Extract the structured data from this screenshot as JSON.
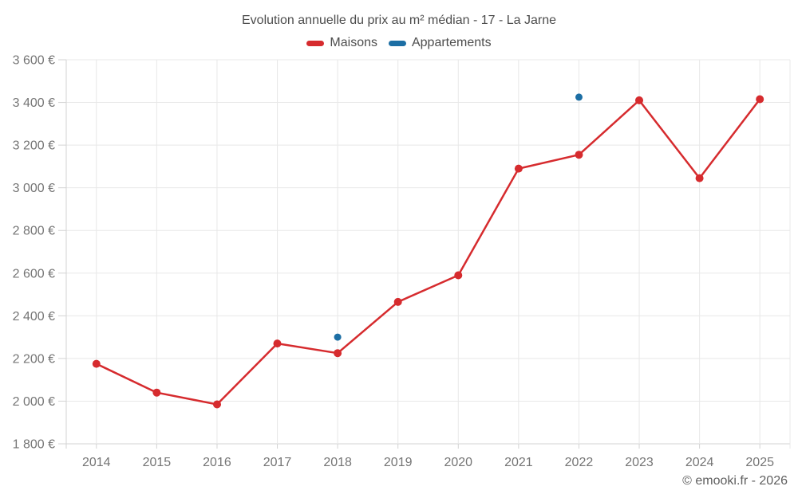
{
  "header": {
    "title": "Evolution annuelle du prix au m² médian - 17 - La Jarne"
  },
  "legend": {
    "items": [
      {
        "label": "Maisons",
        "color": "#d62b2e"
      },
      {
        "label": "Appartements",
        "color": "#1c6ea4"
      }
    ]
  },
  "footer": {
    "credit": "© emooki.fr - 2026"
  },
  "chart_data": {
    "type": "line",
    "title": "Evolution annuelle du prix au m² médian - 17 - La Jarne",
    "categories": [
      "2014",
      "2015",
      "2016",
      "2017",
      "2018",
      "2019",
      "2020",
      "2021",
      "2022",
      "2023",
      "2024",
      "2025"
    ],
    "series": [
      {
        "name": "Maisons",
        "type": "line",
        "color": "#d62b2e",
        "marker_radius": 5,
        "values": [
          2175,
          2040,
          1985,
          2270,
          2225,
          2465,
          2590,
          3090,
          3155,
          3410,
          3045,
          3415
        ]
      },
      {
        "name": "Appartements",
        "type": "scatter",
        "color": "#1c6ea4",
        "marker_radius": 4.5,
        "values": [
          null,
          null,
          null,
          null,
          2300,
          null,
          null,
          null,
          3425,
          null,
          null,
          null
        ]
      }
    ],
    "ylim": [
      1800,
      3600
    ],
    "yticks": [
      {
        "value": 1800,
        "label": "1 800 €"
      },
      {
        "value": 2000,
        "label": "2 000 €"
      },
      {
        "value": 2200,
        "label": "2 200 €"
      },
      {
        "value": 2400,
        "label": "2 400 €"
      },
      {
        "value": 2600,
        "label": "2 600 €"
      },
      {
        "value": 2800,
        "label": "2 800 €"
      },
      {
        "value": 3000,
        "label": "3 000 €"
      },
      {
        "value": 3200,
        "label": "3 200 €"
      },
      {
        "value": 3400,
        "label": "3 400 €"
      },
      {
        "value": 3600,
        "label": "3 600 €"
      }
    ],
    "grid": true,
    "legend_position": "top",
    "ylabel": "",
    "xlabel": ""
  }
}
